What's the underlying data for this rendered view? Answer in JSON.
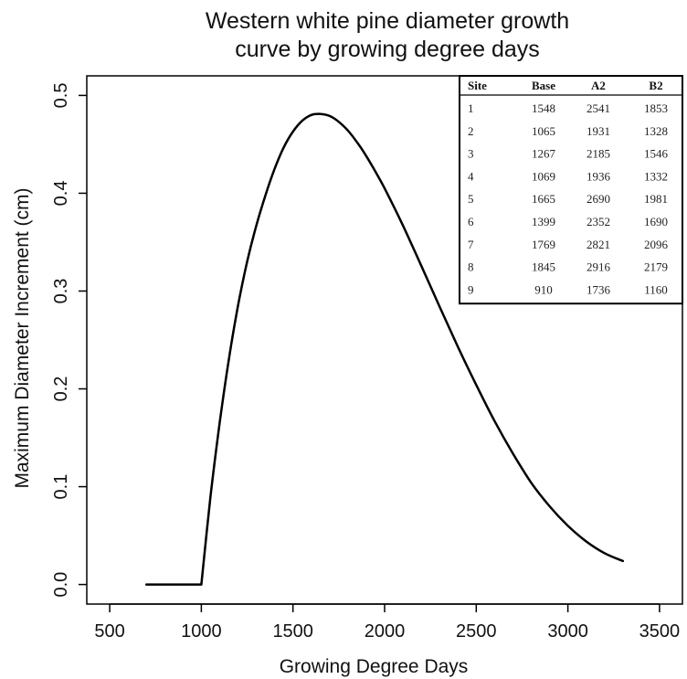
{
  "chart_data": {
    "type": "line",
    "title_lines": [
      "Western white pine diameter growth",
      "curve by growing degree days"
    ],
    "xlabel": "Growing Degree Days",
    "ylabel": "Maximum Diameter Increment (cm)",
    "xlim": [
      375,
      3625
    ],
    "ylim": [
      -0.02,
      0.52
    ],
    "x_ticks": [
      500,
      1000,
      1500,
      2000,
      2500,
      3000,
      3500
    ],
    "x_tick_labels": [
      "500",
      "1000",
      "1500",
      "2000",
      "2500",
      "3000",
      "3500"
    ],
    "y_ticks": [
      0.0,
      0.1,
      0.2,
      0.3,
      0.4,
      0.5
    ],
    "y_tick_labels": [
      "0.0",
      "0.1",
      "0.2",
      "0.3",
      "0.4",
      "0.5"
    ],
    "grid": false,
    "series": [
      {
        "x": [
          700,
          1000,
          1050,
          1100,
          1150,
          1200,
          1250,
          1300,
          1350,
          1400,
          1450,
          1500,
          1550,
          1600,
          1650,
          1700,
          1750,
          1800,
          1850,
          1900,
          1950,
          2000,
          2100,
          2200,
          2300,
          2400,
          2500,
          2600,
          2700,
          2800,
          2900,
          3000,
          3100,
          3200,
          3300
        ],
        "values": [
          0.0,
          0.0,
          0.09,
          0.165,
          0.23,
          0.285,
          0.33,
          0.367,
          0.398,
          0.425,
          0.447,
          0.463,
          0.474,
          0.48,
          0.481,
          0.479,
          0.473,
          0.464,
          0.452,
          0.438,
          0.422,
          0.405,
          0.367,
          0.326,
          0.284,
          0.243,
          0.204,
          0.167,
          0.134,
          0.104,
          0.08,
          0.06,
          0.044,
          0.032,
          0.024
        ],
        "color": "#000000"
      }
    ],
    "table": {
      "columns": [
        "Site",
        "Base",
        "A2",
        "B2"
      ],
      "rows": [
        [
          "1",
          "1548",
          "2541",
          "1853"
        ],
        [
          "2",
          "1065",
          "1931",
          "1328"
        ],
        [
          "3",
          "1267",
          "2185",
          "1546"
        ],
        [
          "4",
          "1069",
          "1936",
          "1332"
        ],
        [
          "5",
          "1665",
          "2690",
          "1981"
        ],
        [
          "6",
          "1399",
          "2352",
          "1690"
        ],
        [
          "7",
          "1769",
          "2821",
          "2096"
        ],
        [
          "8",
          "1845",
          "2916",
          "2179"
        ],
        [
          "9",
          "910",
          "1736",
          "1160"
        ]
      ],
      "placement": "top-right"
    }
  }
}
